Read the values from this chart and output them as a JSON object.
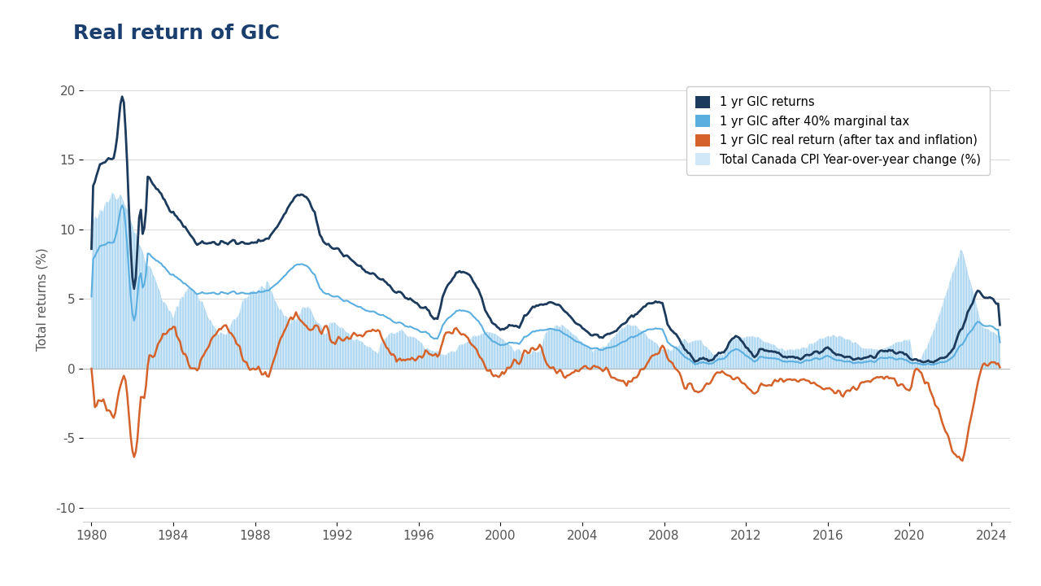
{
  "title": "Real return of GIC",
  "ylabel": "Total returns (%)",
  "ylim": [
    -11,
    21
  ],
  "yticks": [
    -10,
    -5,
    0,
    5,
    10,
    15,
    20
  ],
  "xlim_start": 1979.6,
  "xlim_end": 2024.9,
  "xticks": [
    1980,
    1984,
    1988,
    1992,
    1996,
    2000,
    2004,
    2008,
    2012,
    2016,
    2020,
    2024
  ],
  "background_color": "#ffffff",
  "title_color": "#1a3f6f",
  "title_fontsize": 18,
  "title_fontweight": "bold",
  "tick_color": "#555555",
  "colors": {
    "gic_returns": "#1b3a5c",
    "after_tax": "#5aaee0",
    "real_return": "#d4622a",
    "cpi_fill": "#d0e8f8",
    "cpi_line": "#9dcbec"
  },
  "legend_labels": [
    "1 yr GIC returns",
    "1 yr GIC after 40% marginal tax",
    "1 yr GIC real return (after tax and inflation)",
    "Total Canada CPI Year-over-year change (%)"
  ]
}
